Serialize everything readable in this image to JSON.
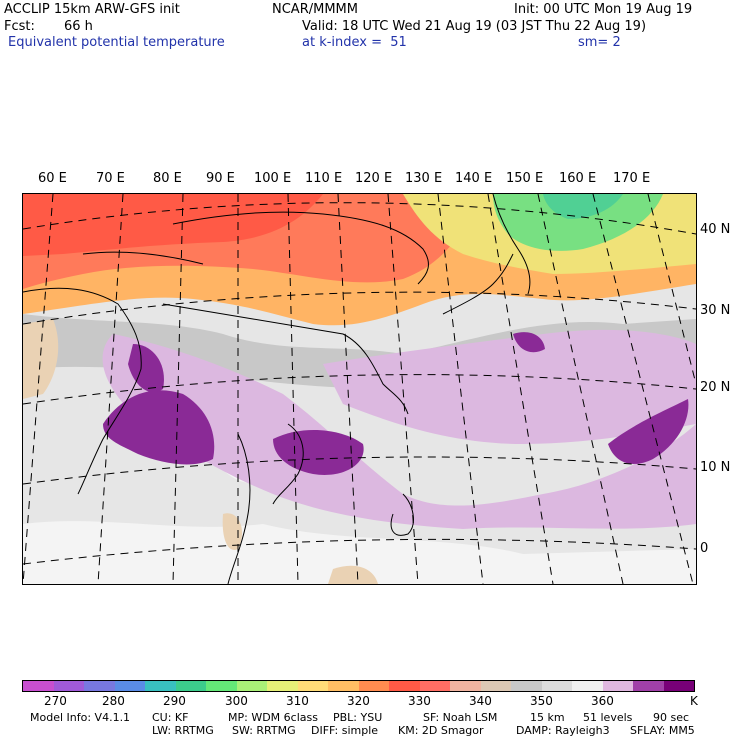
{
  "header": {
    "model": "ACCLIP 15km ARW-GFS init",
    "org": "NCAR/MMMM",
    "init": "Init: 00 UTC Mon 19 Aug 19",
    "fcst_label": "Fcst:",
    "fcst_value": "66 h",
    "valid": "Valid: 18 UTC Wed 21 Aug 19 (03 JST Thu 22 Aug 19)",
    "field": "Equivalent potential temperature",
    "level": "at k-index =  51",
    "smooth": "sm= 2"
  },
  "map": {
    "lon_labels": [
      "60 E",
      "70 E",
      "80 E",
      "90 E",
      "100 E",
      "110 E",
      "120 E",
      "130 E",
      "140 E",
      "150 E",
      "160 E",
      "170 E"
    ],
    "lat_labels": [
      "40 N",
      "30 N",
      "20 N",
      "10 N",
      "0"
    ]
  },
  "colorbar": {
    "colors": [
      "#c84fd0",
      "#a05ad8",
      "#7878e0",
      "#5a8ce6",
      "#39c0c0",
      "#3ccc8c",
      "#64e878",
      "#aaf078",
      "#e6f078",
      "#ffdc78",
      "#ffbe64",
      "#ff8c50",
      "#ff5a46",
      "#ff6e64",
      "#f0b4a0",
      "#dcc8b4",
      "#c8c8c8",
      "#dcdcdc",
      "#f0f0f0",
      "#e0b8e0",
      "#a040a8",
      "#780078"
    ],
    "ticks": [
      "270",
      "280",
      "290",
      "300",
      "310",
      "320",
      "330",
      "340",
      "350",
      "360"
    ],
    "unit": "K"
  },
  "footer": {
    "line1": [
      "Model Info: V4.1.1",
      "CU: KF",
      "MP: WDM 6class",
      "PBL: YSU",
      "SF: Noah LSM",
      "15 km",
      "51 levels",
      "90 sec"
    ],
    "line2": [
      "LW: RRTMG",
      "SW: RRTMG",
      "DIFF: simple",
      "KM: 2D Smagor",
      "DAMP: Rayleigh3",
      "SFLAY: MM5"
    ]
  }
}
